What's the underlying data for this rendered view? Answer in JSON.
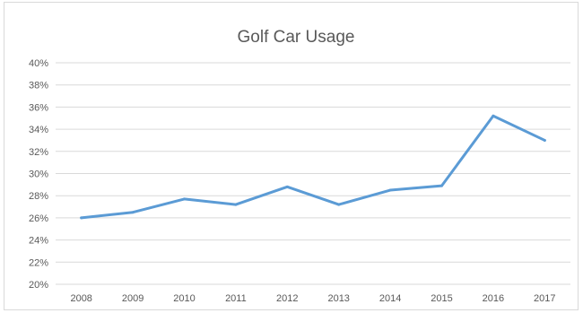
{
  "chart_data": {
    "type": "line",
    "title": "Golf Car Usage",
    "xlabel": "",
    "ylabel": "",
    "categories": [
      "2008",
      "2009",
      "2010",
      "2011",
      "2012",
      "2013",
      "2014",
      "2015",
      "2016",
      "2017"
    ],
    "series": [
      {
        "values": [
          26.0,
          26.5,
          27.7,
          27.2,
          28.8,
          27.2,
          28.5,
          28.9,
          35.2,
          33.0
        ]
      }
    ],
    "ylim": [
      20,
      40
    ],
    "yticks": [
      "20%",
      "22%",
      "24%",
      "26%",
      "28%",
      "30%",
      "32%",
      "34%",
      "36%",
      "38%",
      "40%"
    ],
    "grid": true,
    "legend": "none",
    "line_color": "#5b9bd5",
    "grid_color": "#d9d9d9"
  }
}
